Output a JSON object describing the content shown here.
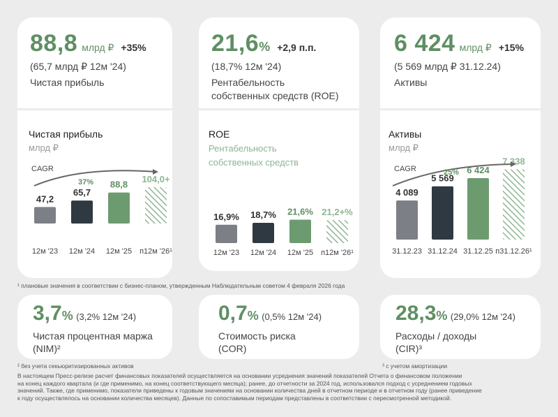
{
  "top_cards": [
    {
      "value": "88,8",
      "unit": "млрд ₽",
      "delta": "+35%",
      "compare": "(65,7 млрд ₽ 12м '24)",
      "label": "Чистая прибыль",
      "label2": ""
    },
    {
      "value": "21,6",
      "unit": "%",
      "delta": "+2,9 п.п.",
      "compare": "(18,7% 12м '24)",
      "label": "Рентабельность",
      "label2": "собственных средств (ROE)"
    },
    {
      "value": "6 424",
      "unit": "млрд ₽",
      "delta": "+15%",
      "compare": "(5 569 млрд ₽ 31.12.24)",
      "label": "Активы",
      "label2": ""
    }
  ],
  "chart_titles": {
    "profit": {
      "title": "Чистая прибыль",
      "sub": "млрд ₽",
      "cagr_label": "CAGR",
      "cagr_value": "37%"
    },
    "roe": {
      "title": "ROE",
      "sub1": "Рентабельность",
      "sub2": "собственных средств"
    },
    "assets": {
      "title": "Активы",
      "sub": "млрд ₽",
      "cagr_label": "CAGR",
      "cagr_value": "25%"
    }
  },
  "chart_data": [
    {
      "type": "bar",
      "title": "Чистая прибыль",
      "ylabel": "млрд ₽",
      "categories": [
        "12м '23",
        "12м '24",
        "12м '25",
        "п12м '26¹"
      ],
      "values": [
        47.2,
        65.7,
        88.8,
        104.0
      ],
      "value_labels": [
        "47,2",
        "65,7",
        "88,8",
        "104,0+"
      ],
      "bar_styles": [
        "gray",
        "dark",
        "green",
        "hatched"
      ],
      "annotation": "CAGR 37%"
    },
    {
      "type": "bar",
      "title": "ROE",
      "ylabel": "Рентабельность собственных средств",
      "categories": [
        "12м '23",
        "12м '24",
        "12м '25",
        "п12м '26¹"
      ],
      "values": [
        16.9,
        18.7,
        21.6,
        21.2
      ],
      "value_labels": [
        "16,9%",
        "18,7%",
        "21,6%",
        "21,2+%"
      ],
      "bar_styles": [
        "gray",
        "dark",
        "green",
        "hatched"
      ]
    },
    {
      "type": "bar",
      "title": "Активы",
      "ylabel": "млрд ₽",
      "categories": [
        "31.12.23",
        "31.12.24",
        "31.12.25",
        "п31.12.26¹"
      ],
      "values": [
        4089,
        5569,
        6424,
        7338
      ],
      "value_labels": [
        "4 089",
        "5 569",
        "6 424",
        "7 338"
      ],
      "bar_styles": [
        "gray",
        "dark",
        "green",
        "hatched"
      ],
      "annotation": "CAGR 25%"
    }
  ],
  "colors": {
    "gray": "#7d7f86",
    "dark": "#2f3942",
    "green": "#6d9b70",
    "hatched": "#8fb592",
    "accent": "#5f8f63"
  },
  "footnote1": "¹ плановые значения в соответствии с бизнес-планом, утвержденным Наблюдательным советом 4 февраля 2026 года",
  "bottom_cards": [
    {
      "value": "3,7",
      "unit": "%",
      "compare": "(3,2% 12м '24)",
      "label": "Чистая процентная маржа",
      "label2": "(NIM)²"
    },
    {
      "value": "0,7",
      "unit": "%",
      "compare": "(0,5% 12м '24)",
      "label": "Стоимость риска",
      "label2": "(COR)"
    },
    {
      "value": "28,3",
      "unit": "%",
      "compare": "(29,0% 12м '24)",
      "label": "Расходы / доходы",
      "label2": "(CIR)³"
    }
  ],
  "footnote2": "² без учета секьюритизированных активов",
  "footnote3": "³ с учетом амортизации",
  "disclaimer": [
    "В настоящем Пресс-релизе расчет финансовых показателей осуществляется на основании усреднения значений показателей Отчета о финансовом положении",
    "на конец каждого квартала (и где применимо, на конец соответствующего месяца); ранее, до отчетности за 2024 год, использовался подход с усреднением годовых",
    "значений. Также, где применимо, показатели приведены к годовым значениям на основании количества дней в отчетном периоде и в отчетном году (ранее приведение",
    "к году осуществлялось на основании количества месяцев). Данные по сопоставимым периодам представлены в соответствии с пересмотренной методикой."
  ]
}
